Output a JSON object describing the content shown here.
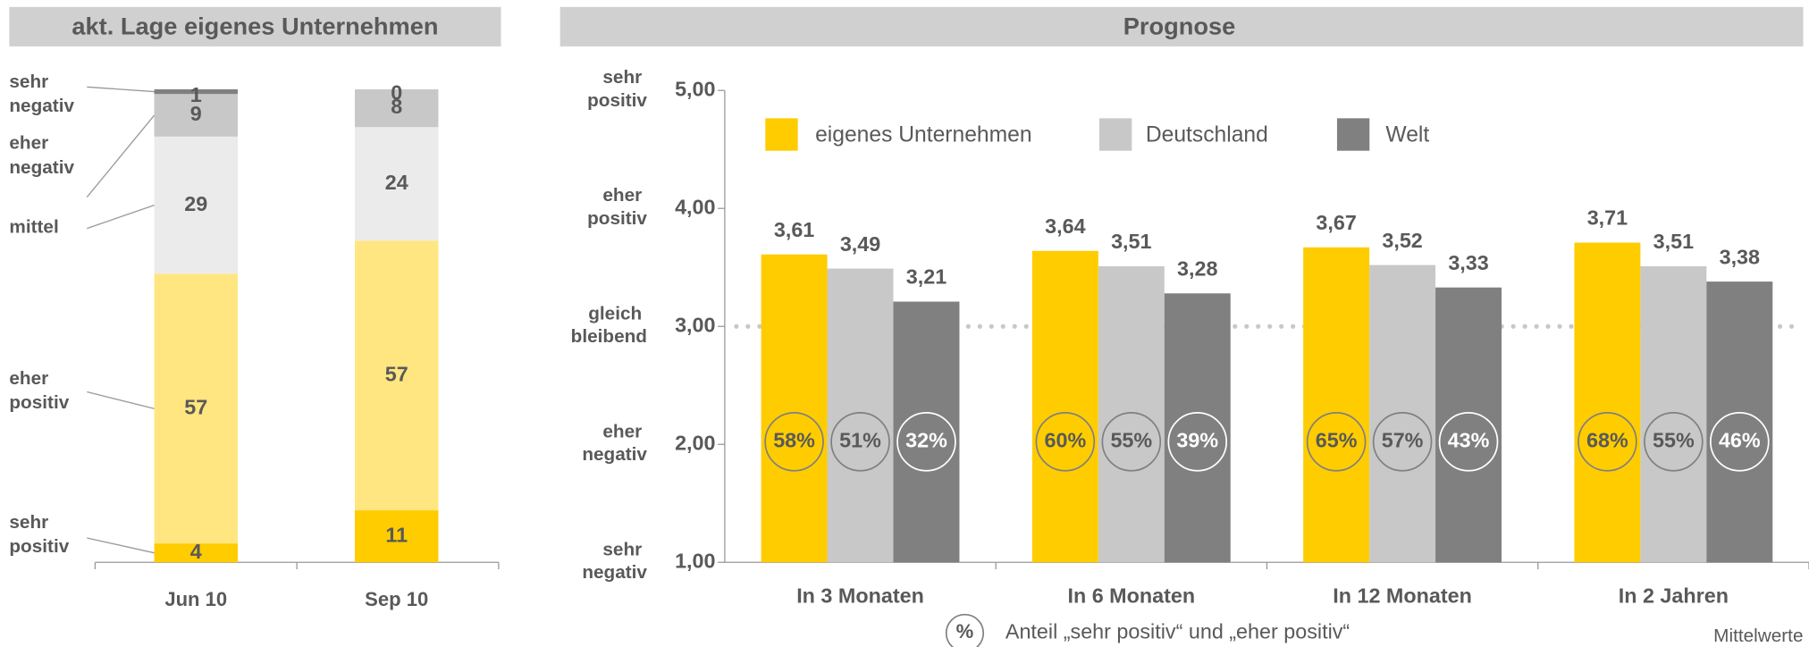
{
  "chart_data": [
    {
      "type": "stacked_bar",
      "title": "akt. Lage eigenes Unternehmen",
      "categories": [
        "Jun 10",
        "Sep 10"
      ],
      "ylim": [
        0,
        100
      ],
      "series": [
        {
          "name": "sehr positiv",
          "color": "#FFCC00",
          "values": [
            4,
            11
          ]
        },
        {
          "name": "eher positiv",
          "color": "#FFE680",
          "values": [
            57,
            57
          ]
        },
        {
          "name": "mittel",
          "color": "#EBEBEB",
          "values": [
            29,
            24
          ]
        },
        {
          "name": "eher negativ",
          "color": "#C8C8C8",
          "values": [
            9,
            8
          ]
        },
        {
          "name": "sehr negativ",
          "color": "#808080",
          "values": [
            1,
            0
          ]
        }
      ]
    },
    {
      "type": "bar",
      "title": "Prognose",
      "categories": [
        "In 3 Monaten",
        "In 6 Monaten",
        "In 12 Monaten",
        "In 2 Jahren"
      ],
      "ylim": [
        1,
        5
      ],
      "yticks": [
        {
          "value": 1,
          "label": "1,00"
        },
        {
          "value": 2,
          "label": "2,00"
        },
        {
          "value": 3,
          "label": "3,00"
        },
        {
          "value": 4,
          "label": "4,00"
        },
        {
          "value": 5,
          "label": "5,00"
        }
      ],
      "ytick_texts": [
        "sehr negativ",
        "eher negativ",
        "gleich bleibend",
        "eher positiv",
        "sehr positiv"
      ],
      "reference_line": 3,
      "series": [
        {
          "name": "eigenes Unternehmen",
          "color": "#FFCC00",
          "values": [
            3.61,
            3.64,
            3.67,
            3.71
          ],
          "value_labels": [
            "3,61",
            "3,64",
            "3,67",
            "3,71"
          ],
          "share_values": [
            58,
            60,
            65,
            68
          ],
          "share_labels": [
            "58%",
            "60%",
            "65%",
            "68%"
          ]
        },
        {
          "name": "Deutschland",
          "color": "#C8C8C8",
          "values": [
            3.49,
            3.51,
            3.52,
            3.51
          ],
          "value_labels": [
            "3,49",
            "3,51",
            "3,52",
            "3,51"
          ],
          "share_values": [
            51,
            55,
            57,
            55
          ],
          "share_labels": [
            "51%",
            "55%",
            "57%",
            "55%"
          ]
        },
        {
          "name": "Welt",
          "color": "#808080",
          "values": [
            3.21,
            3.28,
            3.33,
            3.38
          ],
          "value_labels": [
            "3,21",
            "3,28",
            "3,33",
            "3,38"
          ],
          "share_values": [
            32,
            39,
            43,
            46
          ],
          "share_labels": [
            "32%",
            "39%",
            "43%",
            "46%"
          ]
        }
      ],
      "share_icon": "%",
      "share_legend": "Anteil „sehr positiv“ und „eher positiv“",
      "note": "Mittelwerte"
    }
  ]
}
